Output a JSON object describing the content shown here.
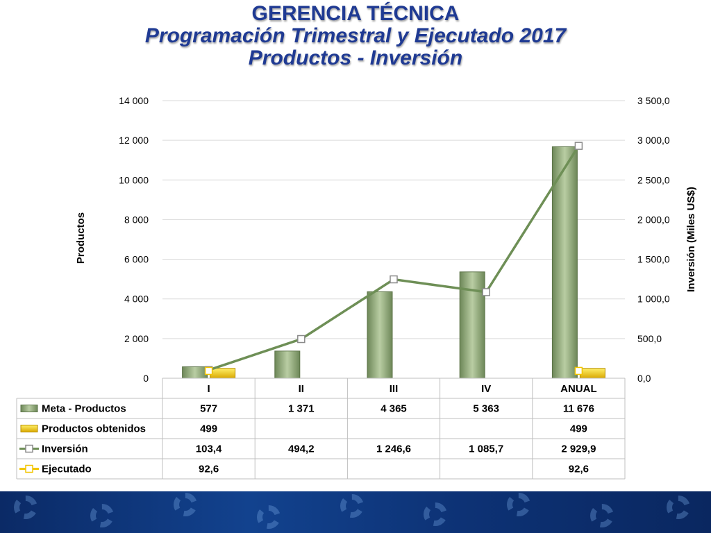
{
  "header": {
    "line1": "GERENCIA TÉCNICA",
    "line2": "Programación Trimestral y Ejecutado 2017",
    "line3": "Productos - Inversión"
  },
  "chart_data": {
    "type": "bar",
    "categories": [
      "I",
      "II",
      "III",
      "IV",
      "ANUAL"
    ],
    "series": [
      {
        "name": "Meta - Productos",
        "kind": "bar",
        "axis": "left",
        "color": "#8fa878",
        "values": [
          577,
          1371,
          4365,
          5363,
          11676
        ],
        "labels": [
          "577",
          "1 371",
          "4 365",
          "5 363",
          "11 676"
        ]
      },
      {
        "name": "Productos obtenidos",
        "kind": "bar",
        "axis": "left",
        "color": "#f2c500",
        "values": [
          499,
          null,
          null,
          null,
          499
        ],
        "labels": [
          "499",
          "",
          "",
          "",
          "499"
        ]
      },
      {
        "name": "Inversión",
        "kind": "line",
        "axis": "right",
        "color": "#6e8f56",
        "values": [
          103.4,
          494.2,
          1246.6,
          1085.7,
          2929.9
        ],
        "labels": [
          "103,4",
          "494,2",
          "1 246,6",
          "1 085,7",
          "2 929,9"
        ]
      },
      {
        "name": "Ejecutado",
        "kind": "line",
        "axis": "right",
        "color": "#f2c500",
        "values": [
          92.6,
          null,
          null,
          null,
          92.6
        ],
        "labels": [
          "92,6",
          "",
          "",
          "",
          "92,6"
        ]
      }
    ],
    "ylabel": "Productos",
    "y2label": "Inversión (Miles US$)",
    "ylim": [
      0,
      14000
    ],
    "y2lim": [
      0,
      3500
    ],
    "yticks": [
      "0",
      "2 000",
      "4 000",
      "6 000",
      "8 000",
      "10 000",
      "12 000",
      "14 000"
    ],
    "y2ticks": [
      "0,0",
      "500,0",
      "1 000,0",
      "1 500,0",
      "2 000,0",
      "2 500,0",
      "3 000,0",
      "3 500,0"
    ],
    "grid": true,
    "legend": "data-table"
  }
}
